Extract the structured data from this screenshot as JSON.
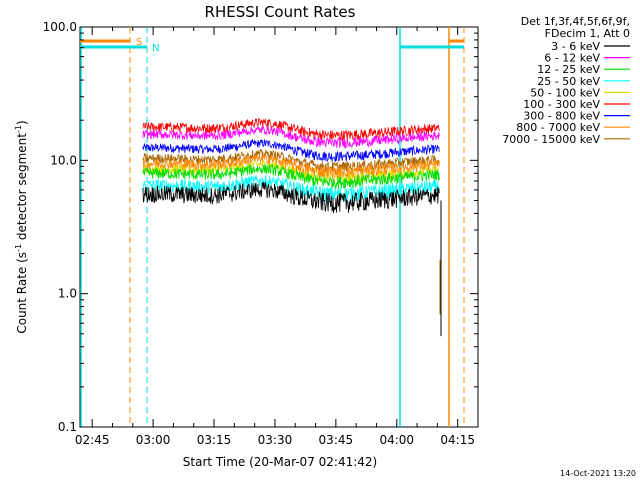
{
  "footer_timestamp": "14-Oct-2021 13:20",
  "chart_data": {
    "type": "line",
    "title": "RHESSI Count Rates",
    "xlabel": "Start Time (20-Mar-07 02:41:42)",
    "ylabel_main": "Count Rate (s",
    "ylabel_sup": "-1",
    "ylabel_tail": " detector segment",
    "ylabel_sup2": "-1",
    "ylabel_close": ")",
    "yscale": "log",
    "ylim": [
      0.1,
      100.0
    ],
    "xlim_minutes": [
      162,
      260
    ],
    "x_ticks": [
      {
        "label": "02:45",
        "minute": 165
      },
      {
        "label": "03:00",
        "minute": 180
      },
      {
        "label": "03:15",
        "minute": 195
      },
      {
        "label": "03:30",
        "minute": 210
      },
      {
        "label": "03:45",
        "minute": 225
      },
      {
        "label": "04:00",
        "minute": 240
      },
      {
        "label": "04:15",
        "minute": 255
      }
    ],
    "y_ticks": [
      {
        "label": "0.1",
        "value": 0.1
      },
      {
        "label": "1.0",
        "value": 1.0
      },
      {
        "label": "10.0",
        "value": 10.0
      },
      {
        "label": "100.0",
        "value": 100.0
      }
    ],
    "legend_header": [
      "Det 1f,3f,4f,5f,6f,9f,",
      "FDecim 1, Att 0"
    ],
    "series": [
      {
        "name": "3 - 6 keV",
        "color": "#000000",
        "base": 5.2,
        "amp": 1.4
      },
      {
        "name": "6 - 12 keV",
        "color": "#ff00ff",
        "base": 14.5,
        "amp": 2.0
      },
      {
        "name": "12 - 25 keV",
        "color": "#00dd00",
        "base": 7.4,
        "amp": 1.3
      },
      {
        "name": "25 - 50 keV",
        "color": "#00ffff",
        "base": 6.0,
        "amp": 1.3
      },
      {
        "name": "50 - 100 keV",
        "color": "#dddd00",
        "base": 8.0,
        "amp": 1.3
      },
      {
        "name": "100 - 300 keV",
        "color": "#ff0000",
        "base": 16.5,
        "amp": 2.5
      },
      {
        "name": "300 - 800 keV",
        "color": "#0000ff",
        "base": 11.5,
        "amp": 1.6
      },
      {
        "name": "800 - 7000 keV",
        "color": "#ff8800",
        "base": 8.8,
        "amp": 1.4
      },
      {
        "name": "7000 - 15000 keV",
        "color": "#aa6600",
        "base": 9.6,
        "amp": 1.4
      }
    ],
    "data_start_minute": 177.5,
    "data_end_minute": 250.5,
    "hump_center_minute": 208,
    "flags": [
      {
        "label": "S",
        "color": "#ff8800"
      },
      {
        "label": "N",
        "color": "#00dddd"
      }
    ]
  }
}
